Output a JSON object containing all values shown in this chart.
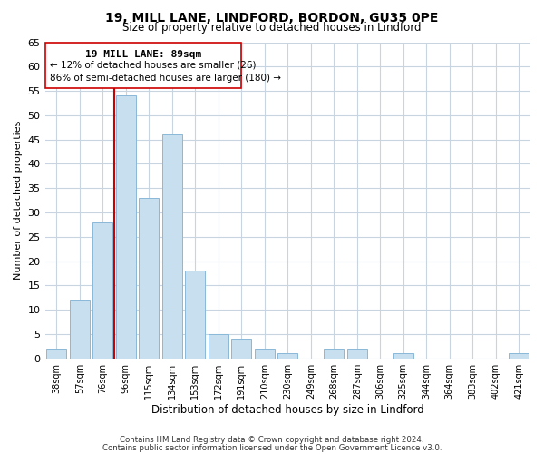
{
  "title": "19, MILL LANE, LINDFORD, BORDON, GU35 0PE",
  "subtitle": "Size of property relative to detached houses in Lindford",
  "xlabel": "Distribution of detached houses by size in Lindford",
  "ylabel": "Number of detached properties",
  "bar_color": "#c8dff0",
  "bar_edge_color": "#8ab8d8",
  "categories": [
    "38sqm",
    "57sqm",
    "76sqm",
    "96sqm",
    "115sqm",
    "134sqm",
    "153sqm",
    "172sqm",
    "191sqm",
    "210sqm",
    "230sqm",
    "249sqm",
    "268sqm",
    "287sqm",
    "306sqm",
    "325sqm",
    "344sqm",
    "364sqm",
    "383sqm",
    "402sqm",
    "421sqm"
  ],
  "values": [
    2,
    12,
    28,
    54,
    33,
    46,
    18,
    5,
    4,
    2,
    1,
    0,
    2,
    2,
    0,
    1,
    0,
    0,
    0,
    0,
    1
  ],
  "ylim": [
    0,
    65
  ],
  "yticks": [
    0,
    5,
    10,
    15,
    20,
    25,
    30,
    35,
    40,
    45,
    50,
    55,
    60,
    65
  ],
  "property_label": "19 MILL LANE: 89sqm",
  "annotation_line1": "← 12% of detached houses are smaller (26)",
  "annotation_line2": "86% of semi-detached houses are larger (180) →",
  "line_color": "#cc0000",
  "footer1": "Contains HM Land Registry data © Crown copyright and database right 2024.",
  "footer2": "Contains public sector information licensed under the Open Government Licence v3.0.",
  "background_color": "#ffffff",
  "plot_background_color": "#ffffff",
  "grid_color": "#c8d4e0"
}
